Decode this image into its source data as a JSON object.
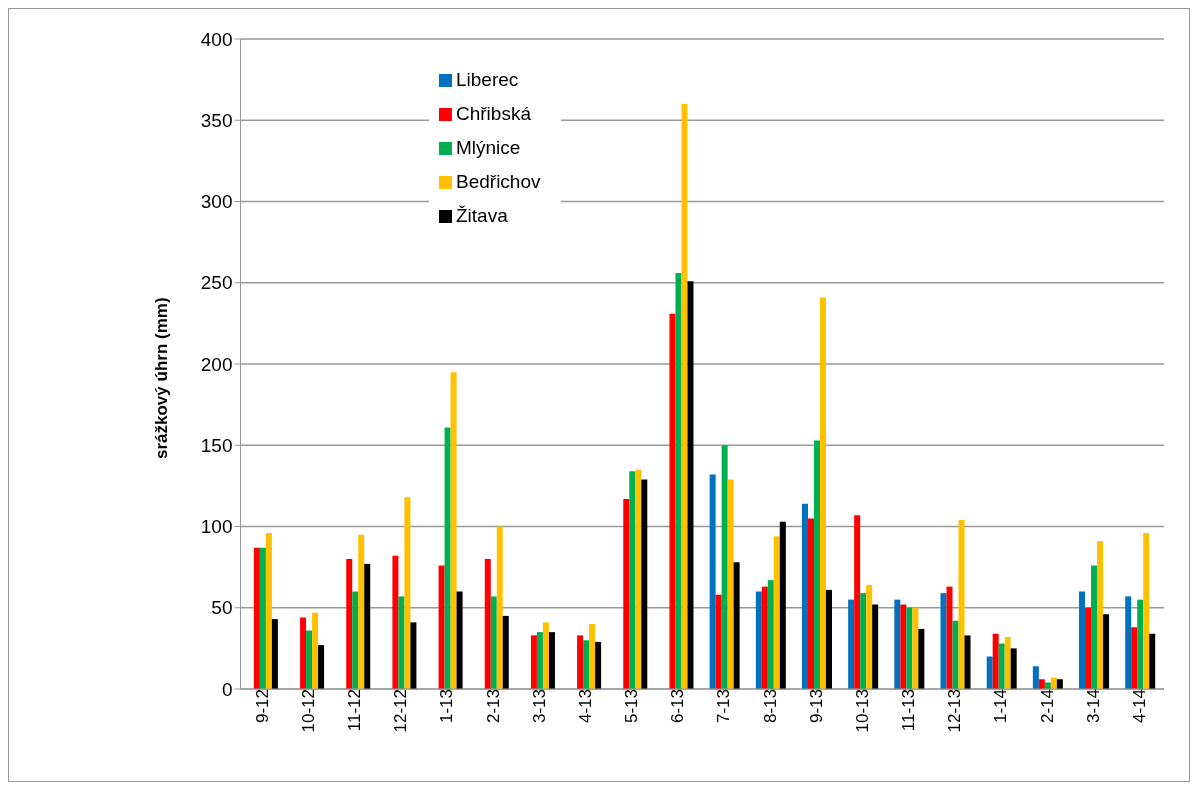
{
  "chart_data": {
    "type": "bar",
    "ylabel": "srážkový úhrn (mm)",
    "categories": [
      "9-12",
      "10-12",
      "11-12",
      "12-12",
      "1-13",
      "2-13",
      "3-13",
      "4-13",
      "5-13",
      "6-13",
      "7-13",
      "8-13",
      "9-13",
      "10-13",
      "11-13",
      "12-13",
      "1-14",
      "2-14",
      "3-14",
      "4-14"
    ],
    "series": [
      {
        "name": "Liberec",
        "color": "#0070c0",
        "values": [
          null,
          null,
          null,
          null,
          null,
          null,
          null,
          null,
          null,
          null,
          132,
          60,
          114,
          55,
          55,
          59,
          20,
          14,
          60,
          57
        ]
      },
      {
        "name": "Chřibská",
        "color": "#ff0000",
        "values": [
          87,
          44,
          80,
          82,
          76,
          80,
          33,
          33,
          117,
          231,
          58,
          63,
          105,
          107,
          52,
          63,
          34,
          6,
          50,
          38
        ]
      },
      {
        "name": "Mlýnice",
        "color": "#00b050",
        "values": [
          87,
          36,
          60,
          57,
          161,
          57,
          35,
          30,
          134,
          256,
          150,
          67,
          153,
          59,
          50,
          42,
          28,
          4,
          76,
          55
        ]
      },
      {
        "name": "Bedřichov",
        "color": "#ffc000",
        "values": [
          96,
          47,
          95,
          118,
          195,
          100,
          41,
          40,
          135,
          360,
          129,
          94,
          241,
          64,
          50,
          104,
          32,
          7,
          91,
          96
        ]
      },
      {
        "name": "Žitava",
        "color": "#000000",
        "values": [
          43,
          27,
          77,
          41,
          60,
          45,
          35,
          29,
          129,
          251,
          78,
          103,
          61,
          52,
          37,
          33,
          25,
          6,
          46,
          34
        ]
      }
    ],
    "ylim": [
      0,
      400
    ],
    "yticks": [
      0,
      50,
      100,
      150,
      200,
      250,
      300,
      350,
      400
    ],
    "grid": "y",
    "legend": "top"
  }
}
